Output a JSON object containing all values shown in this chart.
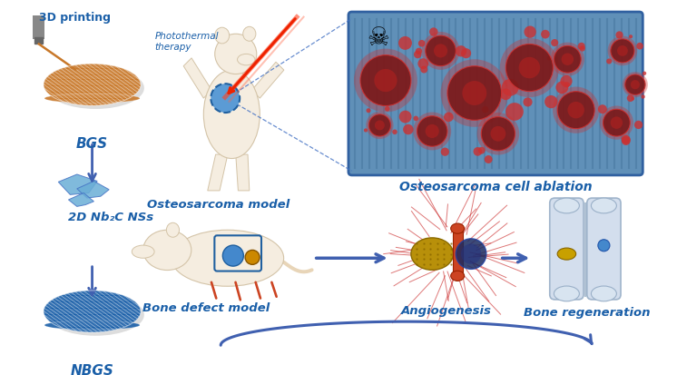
{
  "bg_color": "#ffffff",
  "labels": {
    "3d_printing": "3D printing",
    "photothermal": "Photothermal\ntherapy",
    "bgs": "BGS",
    "2d_nb2c": "2D Nb₂C NSs",
    "nbgs": "NBGS",
    "osteosarcoma_model": "Osteosarcoma model",
    "osteosarcoma_cell": "Osteosarcoma cell ablation",
    "bone_defect": "Bone defect model",
    "angiogenesis": "Angiogenesis",
    "bone_regen": "Bone regeneration"
  },
  "arrow_color": "#4060b0",
  "label_color": "#1a5fa8",
  "figsize": [
    7.46,
    4.13
  ],
  "dpi": 100,
  "scaffold_orange": "#c8782a",
  "scaffold_blue": "#1a5fa8",
  "scaffold_light": "#5aaad8",
  "box_blue_bg": "#5a90c0",
  "box_blue_line": "#3a78c0",
  "cell_dark": "#8b2020",
  "cell_mid": "#cc3030"
}
